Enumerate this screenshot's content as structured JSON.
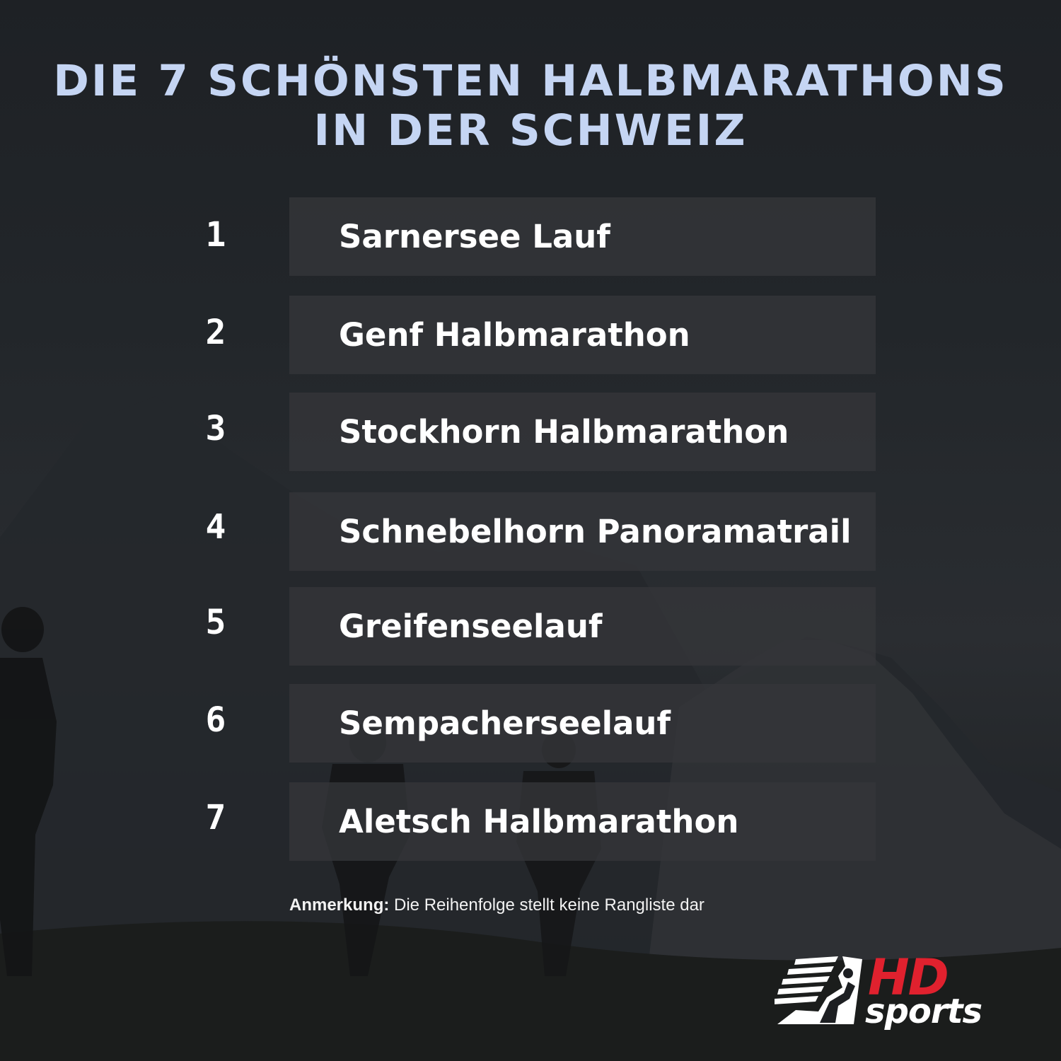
{
  "title": {
    "line1": "DIE 7 SCHÖNSTEN HALBMARATHONS",
    "line2": "IN DER SCHWEIZ"
  },
  "items": [
    {
      "number": "1",
      "label": "Sarnersee Lauf"
    },
    {
      "number": "2",
      "label": "Genf Halbmarathon"
    },
    {
      "number": "3",
      "label": "Stockhorn Halbmarathon"
    },
    {
      "number": "4",
      "label": "Schnebelhorn Panoramatrail"
    },
    {
      "number": "5",
      "label": "Greifenseelauf"
    },
    {
      "number": "6",
      "label": "Sempacherseelauf"
    },
    {
      "number": "7",
      "label": "Aletsch Halbmarathon"
    }
  ],
  "note": {
    "bold": "Anmerkung:",
    "text": " Die Reihenfolge stellt keine Rangliste dar"
  },
  "logo": {
    "hd": "HD",
    "sports": "sports",
    "icon": "runner-icon"
  },
  "colors": {
    "title": "#c5d5f3",
    "brand_red": "#e0212e",
    "row_background": "#34363a"
  }
}
